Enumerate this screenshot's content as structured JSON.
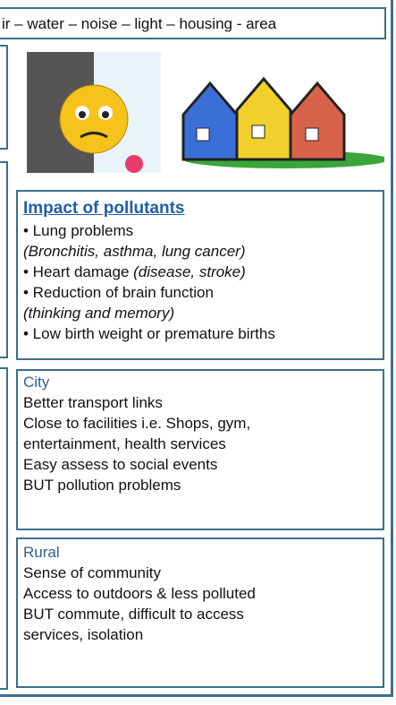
{
  "header": {
    "text": "ir – water – noise – light – housing - area"
  },
  "impact": {
    "title": "Impact of pollutants",
    "lines": [
      {
        "text": "• Lung problems"
      },
      {
        "note": "(Bronchitis, asthma,  lung cancer)"
      },
      {
        "text": "• Heart damage ",
        "note": "(disease, stroke)"
      },
      {
        "text": "• Reduction of brain function"
      },
      {
        "note": "(thinking and memory)"
      },
      {
        "text": "• Low birth weight or premature births"
      }
    ]
  },
  "city": {
    "title": "City",
    "lines": [
      "Better transport links",
      "Close to facilities i.e. Shops, gym,",
      "entertainment, health services",
      "Easy assess to social events",
      "BUT pollution problems"
    ]
  },
  "rural": {
    "title": "Rural",
    "lines": [
      "Sense of community",
      "Access to outdoors & less polluted",
      "BUT commute, difficult to access",
      "services, isolation"
    ]
  }
}
